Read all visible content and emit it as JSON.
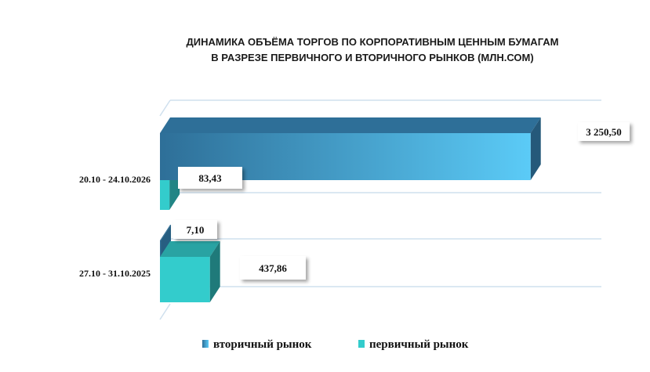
{
  "chart_data": {
    "type": "bar",
    "orientation": "horizontal",
    "title_lines": [
      "ДИНАМИКА ОБЪЁМА ТОРГОВ ПО КОРПОРАТИВНЫМ ЦЕННЫМ БУМАГАМ",
      "В РАЗРЕЗЕ ПЕРВИЧНОГО И ВТОРИЧНОГО РЫНКОВ  (МЛН.СОМ)"
    ],
    "categories": [
      "20.10 - 24.10.2026",
      "27.10 - 31.10.2025"
    ],
    "series": [
      {
        "name": "вторичный рынок",
        "values": [
          3250.5,
          7.1
        ],
        "labels": [
          "3 250,50",
          "7,10"
        ],
        "color_dark": "#2e6f98",
        "color_light": "#5bcbf7"
      },
      {
        "name": "первичный рынок",
        "values": [
          83.43,
          437.86
        ],
        "labels": [
          "83,43",
          "437,86"
        ],
        "color": "#33cccc"
      }
    ],
    "xlim": [
      0,
      3500
    ],
    "grid": true,
    "legend": "bottom"
  }
}
